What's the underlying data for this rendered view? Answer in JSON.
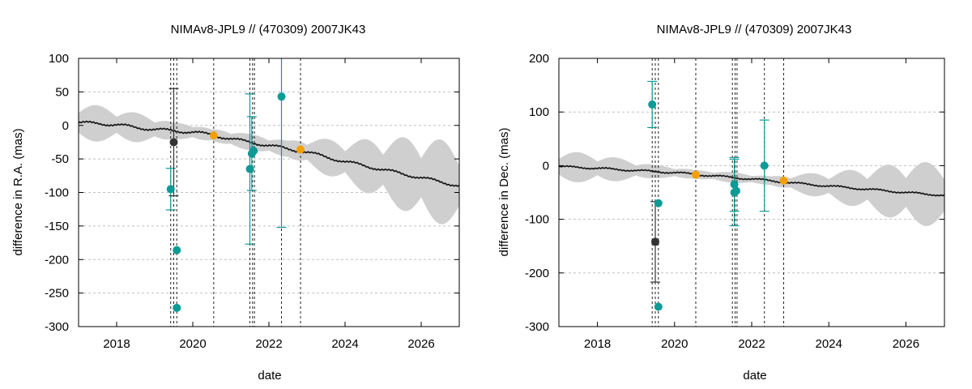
{
  "colors": {
    "band": "#cfcfcf",
    "line": "#111111",
    "teal": "#0e9a96",
    "dark": "#333333",
    "orange": "#f5a000",
    "grid": "#c0c0c0",
    "vline": "#222222"
  },
  "chart_data": [
    {
      "type": "scatter",
      "title": "NIMAv8-JPL9 // (470309) 2007JK43",
      "xlabel": "date",
      "ylabel": "difference in R.A. (mas)",
      "xlim": [
        2017.0,
        2027.0
      ],
      "ylim": [
        -300,
        100
      ],
      "xticks": [
        2018,
        2020,
        2022,
        2024,
        2026
      ],
      "xtick_labels": [
        "2018",
        "2020",
        "2022",
        "2024",
        "2026"
      ],
      "yticks": [
        -300,
        -250,
        -200,
        -150,
        -100,
        -50,
        0,
        50,
        100
      ],
      "ytick_labels": [
        "-300",
        "-250",
        "-200",
        "-150",
        "-100",
        "-50",
        "0",
        "50",
        "100"
      ],
      "grid": true,
      "vertical_lines": [
        2019.42,
        2019.5,
        2019.58,
        2020.55,
        2021.5,
        2021.57,
        2021.62,
        2022.33,
        2022.83
      ],
      "prediction": {
        "center": [
          [
            2017.0,
            4
          ],
          [
            2017.5,
            3
          ],
          [
            2018.0,
            1
          ],
          [
            2018.5,
            -3
          ],
          [
            2019.0,
            -6
          ],
          [
            2019.5,
            -8
          ],
          [
            2020.0,
            -10
          ],
          [
            2020.5,
            -14
          ],
          [
            2021.0,
            -20
          ],
          [
            2021.5,
            -25
          ],
          [
            2022.0,
            -30
          ],
          [
            2022.5,
            -35
          ],
          [
            2023.0,
            -40
          ],
          [
            2023.5,
            -47
          ],
          [
            2024.0,
            -54
          ],
          [
            2024.5,
            -60
          ],
          [
            2025.0,
            -66
          ],
          [
            2025.5,
            -72
          ],
          [
            2026.0,
            -78
          ],
          [
            2026.5,
            -84
          ],
          [
            2027.0,
            -90
          ]
        ],
        "wiggle_amplitude": 4,
        "band_halfwidth": [
          [
            2017.0,
            28
          ],
          [
            2018.0,
            22
          ],
          [
            2019.0,
            18
          ],
          [
            2019.5,
            10
          ],
          [
            2020.0,
            12
          ],
          [
            2020.5,
            6
          ],
          [
            2021.0,
            12
          ],
          [
            2021.5,
            10
          ],
          [
            2022.0,
            12
          ],
          [
            2022.5,
            10
          ],
          [
            2023.0,
            20
          ],
          [
            2024.0,
            30
          ],
          [
            2025.0,
            45
          ],
          [
            2026.0,
            60
          ],
          [
            2027.0,
            62
          ]
        ]
      },
      "points": [
        {
          "series": "teal",
          "x": 2019.42,
          "y": -95,
          "err": 31
        },
        {
          "series": "teal",
          "x": 2019.58,
          "y": -186,
          "err": 0
        },
        {
          "series": "teal",
          "x": 2019.58,
          "y": -272,
          "err": 0
        },
        {
          "series": "dark",
          "x": 2019.5,
          "y": -25,
          "err": 80
        },
        {
          "series": "orange",
          "x": 2020.55,
          "y": -15,
          "err": 0
        },
        {
          "series": "teal",
          "x": 2021.5,
          "y": -65,
          "err": 112
        },
        {
          "series": "teal",
          "x": 2021.55,
          "y": -42,
          "err": 55
        },
        {
          "series": "teal",
          "x": 2021.6,
          "y": -38,
          "err": 0
        },
        {
          "series": "teal",
          "x": 2022.33,
          "y": 43,
          "err": 195
        },
        {
          "series": "orange",
          "x": 2022.83,
          "y": -36,
          "err": 0
        }
      ]
    },
    {
      "type": "scatter",
      "title": "NIMAv8-JPL9 // (470309) 2007JK43",
      "xlabel": "date",
      "ylabel": "difference in Dec. (mas)",
      "xlim": [
        2017.0,
        2027.0
      ],
      "ylim": [
        -300,
        200
      ],
      "xticks": [
        2018,
        2020,
        2022,
        2024,
        2026
      ],
      "xtick_labels": [
        "2018",
        "2020",
        "2022",
        "2024",
        "2026"
      ],
      "yticks": [
        -300,
        -200,
        -100,
        0,
        100,
        200
      ],
      "ytick_labels": [
        "-300",
        "-200",
        "-100",
        "0",
        "100",
        "200"
      ],
      "grid": true,
      "vertical_lines": [
        2019.42,
        2019.5,
        2019.58,
        2020.55,
        2021.5,
        2021.57,
        2021.62,
        2022.33,
        2022.83
      ],
      "prediction": {
        "center": [
          [
            2017.0,
            -2
          ],
          [
            2017.5,
            -3
          ],
          [
            2018.0,
            -5
          ],
          [
            2018.5,
            -7
          ],
          [
            2019.0,
            -9
          ],
          [
            2019.5,
            -11
          ],
          [
            2020.0,
            -13
          ],
          [
            2020.5,
            -16
          ],
          [
            2021.0,
            -19
          ],
          [
            2021.5,
            -22
          ],
          [
            2022.0,
            -25
          ],
          [
            2022.5,
            -28
          ],
          [
            2023.0,
            -32
          ],
          [
            2023.5,
            -35
          ],
          [
            2024.0,
            -38
          ],
          [
            2024.5,
            -41
          ],
          [
            2025.0,
            -44
          ],
          [
            2025.5,
            -47
          ],
          [
            2026.0,
            -50
          ],
          [
            2026.5,
            -53
          ],
          [
            2027.0,
            -55
          ]
        ],
        "wiggle_amplitude": 3,
        "band_halfwidth": [
          [
            2017.0,
            28
          ],
          [
            2018.0,
            24
          ],
          [
            2019.0,
            16
          ],
          [
            2019.5,
            10
          ],
          [
            2020.0,
            10
          ],
          [
            2020.5,
            6
          ],
          [
            2021.0,
            8
          ],
          [
            2021.5,
            8
          ],
          [
            2022.0,
            8
          ],
          [
            2022.5,
            6
          ],
          [
            2023.0,
            14
          ],
          [
            2024.0,
            24
          ],
          [
            2025.0,
            38
          ],
          [
            2026.0,
            55
          ],
          [
            2027.0,
            60
          ]
        ]
      },
      "points": [
        {
          "series": "teal",
          "x": 2019.42,
          "y": 114,
          "err": 43
        },
        {
          "series": "teal",
          "x": 2019.58,
          "y": -70,
          "err": 0
        },
        {
          "series": "teal",
          "x": 2019.58,
          "y": -263,
          "err": 0
        },
        {
          "series": "dark",
          "x": 2019.5,
          "y": -142,
          "err": 75
        },
        {
          "series": "orange",
          "x": 2020.55,
          "y": -17,
          "err": 0
        },
        {
          "series": "teal",
          "x": 2021.55,
          "y": -50,
          "err": 62
        },
        {
          "series": "teal",
          "x": 2021.55,
          "y": -35,
          "err": 50
        },
        {
          "series": "teal",
          "x": 2021.6,
          "y": -47,
          "err": 0
        },
        {
          "series": "teal",
          "x": 2022.33,
          "y": 0,
          "err": 85
        },
        {
          "series": "orange",
          "x": 2022.83,
          "y": -28,
          "err": 0
        }
      ]
    }
  ]
}
